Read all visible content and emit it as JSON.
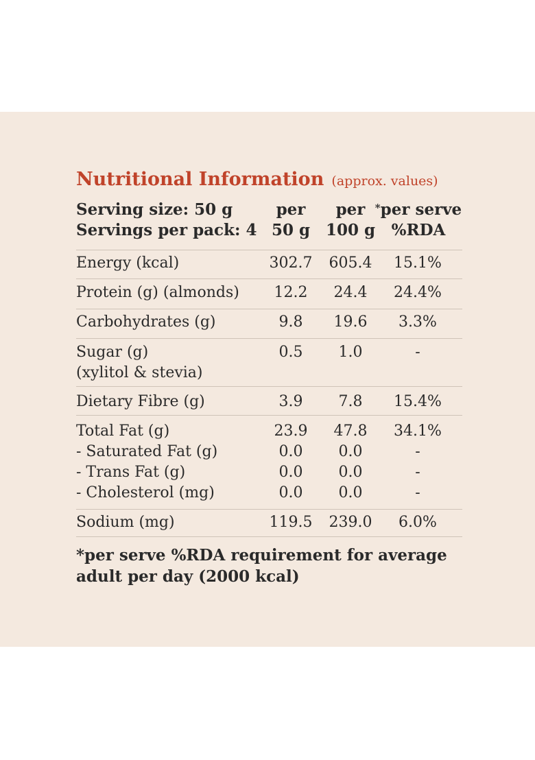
{
  "header": {
    "title": "Nutritional Information",
    "subtitle": "(approx. values)",
    "serving_size": "Serving size: 50 g",
    "servings_per_pack": "Servings per pack: 4",
    "col1_line1": "per",
    "col1_line2": "50 g",
    "col2_line1": "per",
    "col2_line2": "100 g",
    "col3_star": "*",
    "col3_line1": "per serve",
    "col3_line2": "%RDA"
  },
  "rows": [
    {
      "label": "Energy (kcal)",
      "per50": "302.7",
      "per100": "605.4",
      "rda": "15.1%"
    },
    {
      "label": "Protein (g) (almonds)",
      "per50": "12.2",
      "per100": "24.4",
      "rda": "24.4%"
    },
    {
      "label": "Carbohydrates (g)",
      "per50": "9.8",
      "per100": "19.6",
      "rda": "3.3%"
    },
    {
      "label": "Sugar (g)",
      "label2": "(xylitol & stevia)",
      "per50": "0.5",
      "per100": "1.0",
      "rda": "-"
    },
    {
      "label": "Dietary Fibre (g)",
      "per50": "3.9",
      "per100": "7.8",
      "rda": "15.4%"
    },
    {
      "label": "Total Fat (g)",
      "per50": "23.9",
      "per100": "47.8",
      "rda": "34.1%"
    },
    {
      "label": "- Saturated Fat (g)",
      "per50": "0.0",
      "per100": "0.0",
      "rda": "-"
    },
    {
      "label": "- Trans Fat (g)",
      "per50": "0.0",
      "per100": "0.0",
      "rda": "-"
    },
    {
      "label": "- Cholesterol (mg)",
      "per50": "0.0",
      "per100": "0.0",
      "rda": "-"
    },
    {
      "label": "Sodium (mg)",
      "per50": "119.5",
      "per100": "239.0",
      "rda": "6.0%"
    }
  ],
  "footnote": "*per serve %RDA requirement for average adult per day (2000 kcal)",
  "colors": {
    "panel": "#f4e9df",
    "title": "#c0432a",
    "text": "#2a2a2a",
    "rule": "#cfc3b8"
  }
}
